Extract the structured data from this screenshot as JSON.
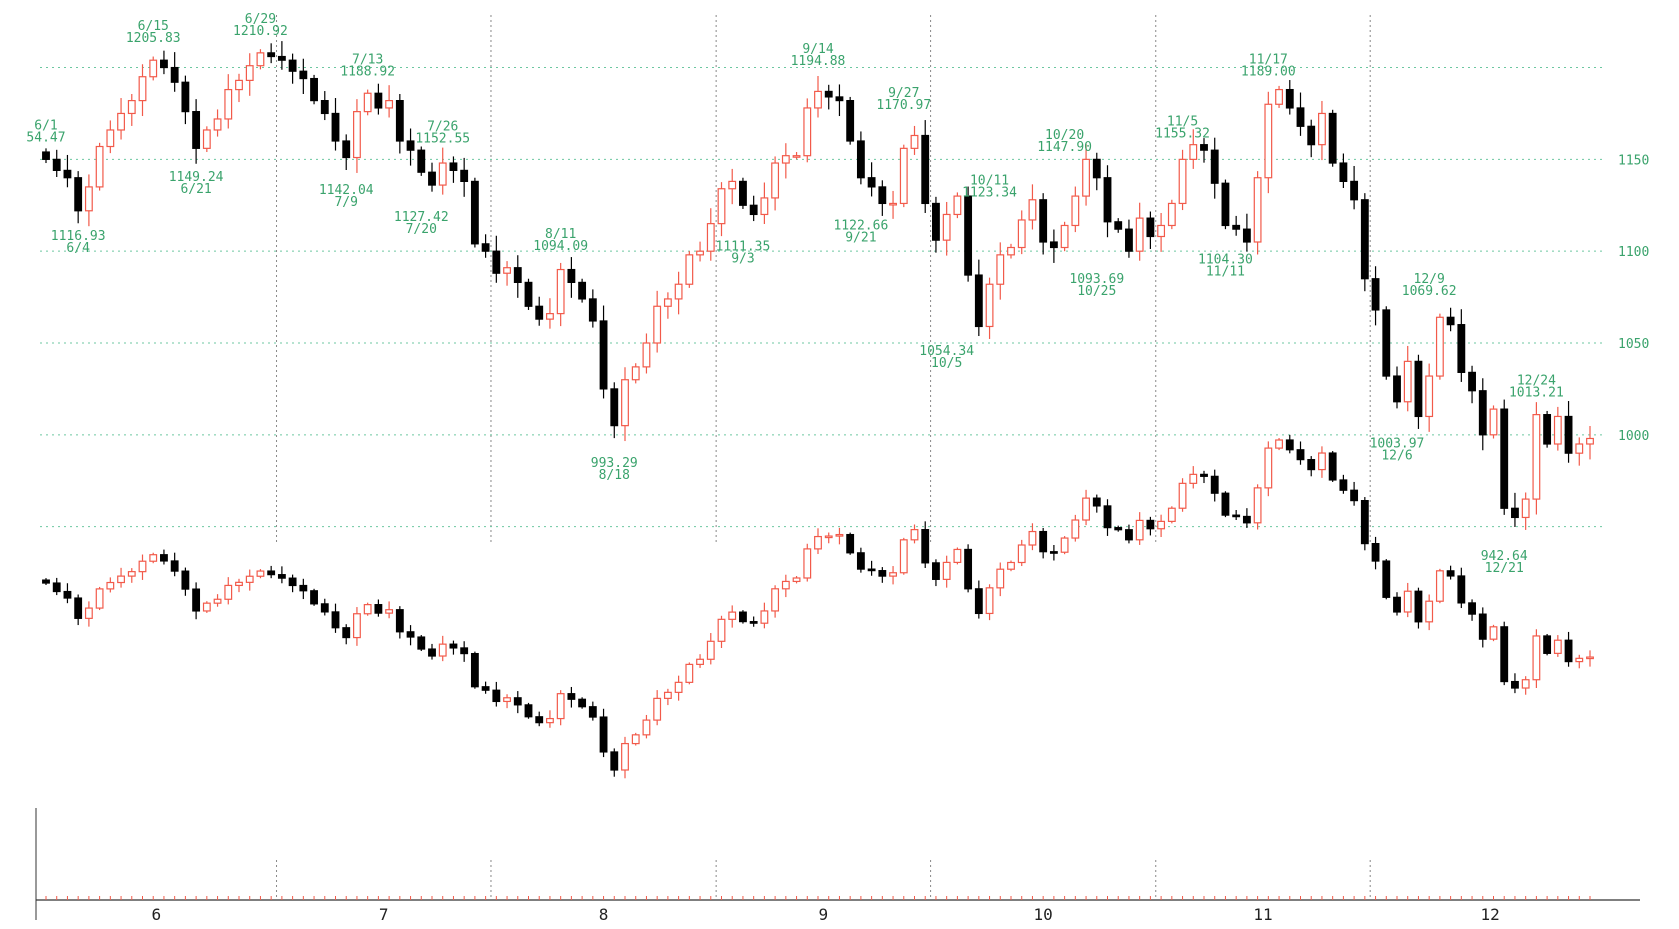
{
  "colors": {
    "up": "#f25a4a",
    "down": "#000000",
    "annotation": "#3aa36c",
    "grid_horizontal": "#6cc7a0",
    "grid_vertical": "#888888",
    "axis": "#333333"
  },
  "chart_data": {
    "type": "candlestick",
    "title": "",
    "y_axis": {
      "ticks": [
        {
          "value": 1150,
          "label": "1150"
        },
        {
          "value": 1100,
          "label": "1100"
        },
        {
          "value": 1050,
          "label": "1050"
        },
        {
          "value": 1000,
          "label": "1000"
        }
      ],
      "ylim": [
        940,
        1215
      ],
      "position": "right"
    },
    "x_axis": {
      "months": [
        {
          "label": "6",
          "start_index": 0
        },
        {
          "label": "7",
          "start_index": 22
        },
        {
          "label": "8",
          "start_index": 42
        },
        {
          "label": "9",
          "start_index": 63
        },
        {
          "label": "10",
          "start_index": 83
        },
        {
          "label": "11",
          "start_index": 104
        },
        {
          "label": "12",
          "start_index": 124
        }
      ]
    },
    "grid": true,
    "annotations": [
      {
        "date": "6/1",
        "value": "54.47",
        "index": 0,
        "position": "above"
      },
      {
        "date": "6/4",
        "value": "1116.93",
        "index": 3,
        "position": "below"
      },
      {
        "date": "6/15",
        "value": "1205.83",
        "index": 10,
        "position": "above"
      },
      {
        "date": "6/21",
        "value": "1149.24",
        "index": 14,
        "position": "below"
      },
      {
        "date": "6/29",
        "value": "1210.92",
        "index": 20,
        "position": "above"
      },
      {
        "date": "7/9",
        "value": "1142.04",
        "index": 28,
        "position": "below"
      },
      {
        "date": "7/13",
        "value": "1188.92",
        "index": 30,
        "position": "above"
      },
      {
        "date": "7/20",
        "value": "1127.42",
        "index": 35,
        "position": "below"
      },
      {
        "date": "7/26",
        "value": "1152.55",
        "index": 37,
        "position": "above"
      },
      {
        "date": "8/11",
        "value": "1094.09",
        "index": 48,
        "position": "above"
      },
      {
        "date": "8/18",
        "value": "993.29",
        "index": 53,
        "position": "below"
      },
      {
        "date": "9/3",
        "value": "1111.35",
        "index": 65,
        "position": "below"
      },
      {
        "date": "9/14",
        "value": "1194.88",
        "index": 72,
        "position": "above"
      },
      {
        "date": "9/21",
        "value": "1122.66",
        "index": 76,
        "position": "below"
      },
      {
        "date": "9/27",
        "value": "1170.97",
        "index": 80,
        "position": "above"
      },
      {
        "date": "10/5",
        "value": "1054.34",
        "index": 84,
        "position": "below"
      },
      {
        "date": "10/11",
        "value": "1123.34",
        "index": 88,
        "position": "above"
      },
      {
        "date": "10/20",
        "value": "1147.90",
        "index": 95,
        "position": "above"
      },
      {
        "date": "10/25",
        "value": "1093.69",
        "index": 98,
        "position": "below"
      },
      {
        "date": "11/5",
        "value": "1155.32",
        "index": 106,
        "position": "above"
      },
      {
        "date": "11/11",
        "value": "1104.30",
        "index": 110,
        "position": "below"
      },
      {
        "date": "11/17",
        "value": "1189.00",
        "index": 114,
        "position": "above"
      },
      {
        "date": "12/6",
        "value": "1003.97",
        "index": 126,
        "position": "below"
      },
      {
        "date": "12/9",
        "value": "1069.62",
        "index": 129,
        "position": "above"
      },
      {
        "date": "12/21",
        "value": "942.64",
        "index": 136,
        "position": "below"
      },
      {
        "date": "12/24",
        "value": "1013.21",
        "index": 139,
        "position": "above"
      }
    ],
    "closes": [
      1150,
      1144,
      1140,
      1122,
      1135,
      1157,
      1166,
      1175,
      1182,
      1195,
      1204,
      1200,
      1192,
      1176,
      1156,
      1166,
      1172,
      1188,
      1193,
      1201,
      1208,
      1206,
      1204,
      1198,
      1194,
      1182,
      1175,
      1160,
      1151,
      1176,
      1186,
      1178,
      1182,
      1160,
      1155,
      1143,
      1136,
      1148,
      1144,
      1138,
      1104,
      1100,
      1088,
      1091,
      1083,
      1070,
      1063,
      1066,
      1090,
      1083,
      1074,
      1062,
      1025,
      1005,
      1030,
      1037,
      1050,
      1070,
      1074,
      1082,
      1098,
      1100,
      1115,
      1134,
      1138,
      1125,
      1120,
      1129,
      1148,
      1152,
      1152,
      1178,
      1187,
      1184,
      1182,
      1160,
      1140,
      1135,
      1126,
      1126,
      1156,
      1163,
      1126,
      1106,
      1120,
      1130,
      1087,
      1059,
      1082,
      1098,
      1102,
      1117,
      1128,
      1105,
      1102,
      1114,
      1130,
      1150,
      1140,
      1116,
      1112,
      1100,
      1118,
      1108,
      1114,
      1126,
      1150,
      1158,
      1155,
      1137,
      1114,
      1112,
      1105,
      1140,
      1180,
      1188,
      1178,
      1168,
      1158,
      1175,
      1148,
      1138,
      1128,
      1085,
      1068,
      1032,
      1018,
      1040,
      1010,
      1032,
      1064,
      1060,
      1034,
      1024,
      1000,
      1014,
      960,
      955,
      965,
      1011,
      995,
      1010,
      990,
      995,
      998
    ],
    "series_note": "Daily candlesticks (up = red hollow, down = black filled); a second, unlabeled price line of the same style is drawn below the main series."
  }
}
